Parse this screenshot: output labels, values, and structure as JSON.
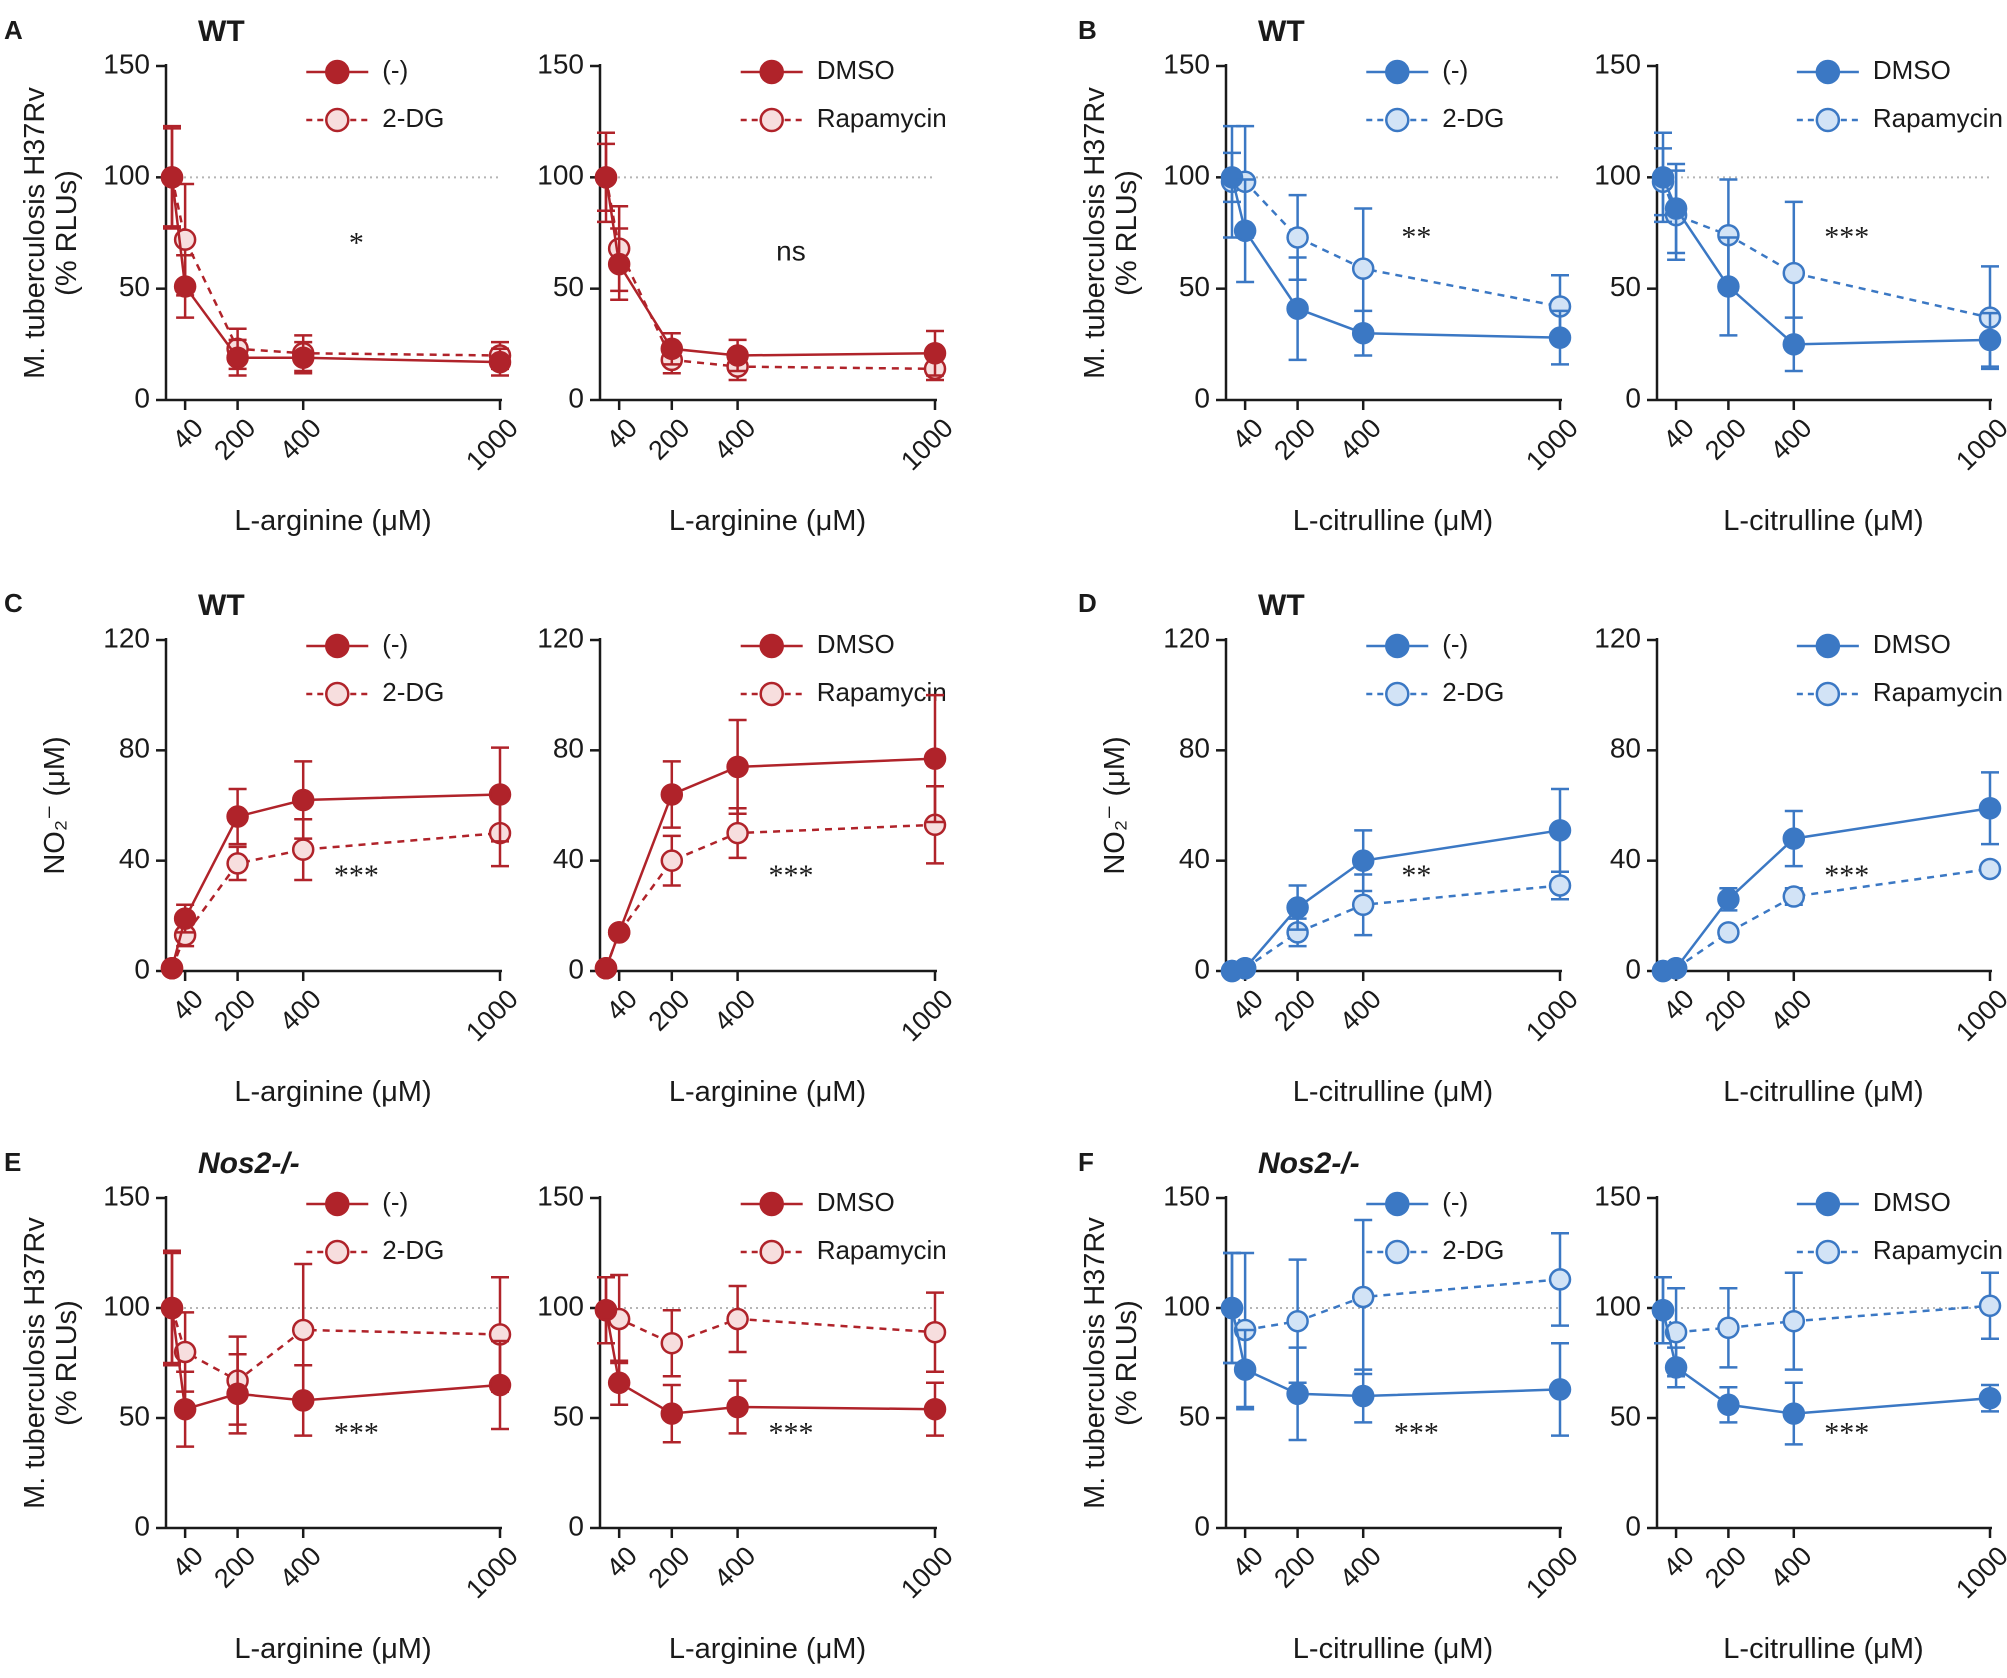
{
  "figure": {
    "panel_letters": [
      "A",
      "B",
      "C",
      "D",
      "E",
      "F"
    ]
  },
  "colors": {
    "red": "#b0232a",
    "red_light": "#f7dede",
    "blue": "#3b78c4",
    "blue_light": "#d2e3f6",
    "axis": "#1a1a1a",
    "reference": "#b5b5b5"
  },
  "chart_data": [
    {
      "id": "A1",
      "panel": "A",
      "header": "WT",
      "header_italic": false,
      "color": "red",
      "type": "line",
      "ylabel": [
        "M. tuberculosis H37Rv",
        "(% RLUs)"
      ],
      "xlabel": "L-arginine (μM)",
      "x": [
        0,
        40,
        200,
        400,
        1000
      ],
      "xticks": [
        40,
        200,
        400,
        1000
      ],
      "yticks": [
        0,
        50,
        100,
        150
      ],
      "ylim": [
        0,
        150
      ],
      "reference_line": 100,
      "series": [
        {
          "name": "(-)",
          "style": "solid-filled",
          "values": [
            100,
            51,
            19,
            19,
            17
          ],
          "err": [
            23,
            14,
            8,
            7,
            6
          ]
        },
        {
          "name": "2-DG",
          "style": "dashed-open",
          "values": [
            100,
            72,
            23,
            21,
            20
          ],
          "err": [
            22,
            25,
            9,
            8,
            6
          ]
        }
      ],
      "annotation": "*"
    },
    {
      "id": "A2",
      "panel": "A",
      "header": "",
      "header_italic": false,
      "color": "red",
      "type": "line",
      "ylabel": [],
      "xlabel": "L-arginine (μM)",
      "x": [
        0,
        40,
        200,
        400,
        1000
      ],
      "xticks": [
        40,
        200,
        400,
        1000
      ],
      "yticks": [
        0,
        50,
        100,
        150
      ],
      "ylim": [
        0,
        150
      ],
      "reference_line": 100,
      "series": [
        {
          "name": "DMSO",
          "style": "solid-filled",
          "values": [
            100,
            61,
            23,
            20,
            21
          ],
          "err": [
            20,
            16,
            7,
            7,
            10
          ]
        },
        {
          "name": "Rapamycin",
          "style": "dashed-open",
          "values": [
            100,
            68,
            18,
            15,
            14
          ],
          "err": [
            15,
            19,
            6,
            6,
            5
          ]
        }
      ],
      "annotation": "ns"
    },
    {
      "id": "B1",
      "panel": "B",
      "header": "WT",
      "header_italic": false,
      "color": "blue",
      "type": "line",
      "ylabel": [
        "M. tuberculosis H37Rv",
        "(% RLUs)"
      ],
      "xlabel": "L-citrulline (μM)",
      "x": [
        0,
        40,
        200,
        400,
        1000
      ],
      "xticks": [
        40,
        200,
        400,
        1000
      ],
      "yticks": [
        0,
        50,
        100,
        150
      ],
      "ylim": [
        0,
        150
      ],
      "reference_line": 100,
      "series": [
        {
          "name": "(-)",
          "style": "solid-filled",
          "values": [
            100,
            76,
            41,
            30,
            28
          ],
          "err": [
            11,
            23,
            23,
            10,
            12
          ]
        },
        {
          "name": "2-DG",
          "style": "dashed-open",
          "values": [
            98,
            98,
            73,
            59,
            42
          ],
          "err": [
            25,
            25,
            19,
            27,
            14
          ]
        }
      ],
      "annotation": "**"
    },
    {
      "id": "B2",
      "panel": "B",
      "header": "",
      "header_italic": false,
      "color": "blue",
      "type": "line",
      "ylabel": [],
      "xlabel": "L-citrulline (μM)",
      "x": [
        0,
        40,
        200,
        400,
        1000
      ],
      "xticks": [
        40,
        200,
        400,
        1000
      ],
      "yticks": [
        0,
        50,
        100,
        150
      ],
      "ylim": [
        0,
        150
      ],
      "reference_line": 100,
      "series": [
        {
          "name": "DMSO",
          "style": "solid-filled",
          "values": [
            100,
            86,
            51,
            25,
            27
          ],
          "err": [
            20,
            20,
            22,
            12,
            12
          ]
        },
        {
          "name": "Rapamycin",
          "style": "dashed-open",
          "values": [
            98,
            83,
            74,
            57,
            37
          ],
          "err": [
            15,
            20,
            25,
            32,
            23
          ]
        }
      ],
      "annotation": "***"
    },
    {
      "id": "C1",
      "panel": "C",
      "header": "WT",
      "header_italic": false,
      "color": "red",
      "type": "line",
      "ylabel": [
        "NO₂⁻ (μM)"
      ],
      "xlabel": "L-arginine (μM)",
      "x": [
        0,
        40,
        200,
        400,
        1000
      ],
      "xticks": [
        40,
        200,
        400,
        1000
      ],
      "yticks": [
        0,
        40,
        80,
        120
      ],
      "ylim": [
        0,
        120
      ],
      "reference_line": null,
      "series": [
        {
          "name": "(-)",
          "style": "solid-filled",
          "values": [
            1,
            19,
            56,
            62,
            64
          ],
          "err": [
            1,
            5,
            10,
            14,
            17
          ]
        },
        {
          "name": "2-DG",
          "style": "dashed-open",
          "values": [
            1,
            13,
            39,
            44,
            50
          ],
          "err": [
            1,
            4,
            6,
            11,
            12
          ]
        }
      ],
      "annotation": "***"
    },
    {
      "id": "C2",
      "panel": "C",
      "header": "",
      "header_italic": false,
      "color": "red",
      "type": "line",
      "ylabel": [],
      "xlabel": "L-arginine (μM)",
      "x": [
        0,
        40,
        200,
        400,
        1000
      ],
      "xticks": [
        40,
        200,
        400,
        1000
      ],
      "yticks": [
        0,
        40,
        80,
        120
      ],
      "ylim": [
        0,
        120
      ],
      "reference_line": null,
      "series": [
        {
          "name": "DMSO",
          "style": "solid-filled",
          "values": [
            1,
            14,
            64,
            74,
            77
          ],
          "err": [
            1,
            2,
            12,
            17,
            23
          ]
        },
        {
          "name": "Rapamycin",
          "style": "dashed-open",
          "values": [
            1,
            14,
            40,
            50,
            53
          ],
          "err": [
            1,
            2,
            9,
            9,
            14
          ]
        }
      ],
      "annotation": "***"
    },
    {
      "id": "D1",
      "panel": "D",
      "header": "WT",
      "header_italic": false,
      "color": "blue",
      "type": "line",
      "ylabel": [
        "NO₂⁻ (μM)"
      ],
      "xlabel": "L-citrulline (μM)",
      "x": [
        0,
        40,
        200,
        400,
        1000
      ],
      "xticks": [
        40,
        200,
        400,
        1000
      ],
      "yticks": [
        0,
        40,
        80,
        120
      ],
      "ylim": [
        0,
        120
      ],
      "reference_line": null,
      "series": [
        {
          "name": "(-)",
          "style": "solid-filled",
          "values": [
            0,
            1,
            23,
            40,
            51
          ],
          "err": [
            1,
            1,
            8,
            11,
            15
          ]
        },
        {
          "name": "2-DG",
          "style": "dashed-open",
          "values": [
            0,
            1,
            14,
            24,
            31
          ],
          "err": [
            1,
            1,
            5,
            11,
            5
          ]
        }
      ],
      "annotation": "**"
    },
    {
      "id": "D2",
      "panel": "D",
      "header": "",
      "header_italic": false,
      "color": "blue",
      "type": "line",
      "ylabel": [],
      "xlabel": "L-citrulline (μM)",
      "x": [
        0,
        40,
        200,
        400,
        1000
      ],
      "xticks": [
        40,
        200,
        400,
        1000
      ],
      "yticks": [
        0,
        40,
        80,
        120
      ],
      "ylim": [
        0,
        120
      ],
      "reference_line": null,
      "series": [
        {
          "name": "DMSO",
          "style": "solid-filled",
          "values": [
            0,
            1,
            26,
            48,
            59
          ],
          "err": [
            1,
            1,
            4,
            10,
            13
          ]
        },
        {
          "name": "Rapamycin",
          "style": "dashed-open",
          "values": [
            0,
            1,
            14,
            27,
            37
          ],
          "err": [
            1,
            1,
            2,
            3,
            2
          ]
        }
      ],
      "annotation": "***"
    },
    {
      "id": "E1",
      "panel": "E",
      "header": "Nos2-/-",
      "header_italic": true,
      "color": "red",
      "type": "line",
      "ylabel": [
        "M. tuberculosis H37Rv",
        "(% RLUs)"
      ],
      "xlabel": "L-arginine (μM)",
      "x": [
        0,
        40,
        200,
        400,
        1000
      ],
      "xticks": [
        40,
        200,
        400,
        1000
      ],
      "yticks": [
        0,
        50,
        100,
        150
      ],
      "ylim": [
        0,
        150
      ],
      "reference_line": 100,
      "series": [
        {
          "name": "(-)",
          "style": "solid-filled",
          "values": [
            100,
            54,
            61,
            58,
            65
          ],
          "err": [
            26,
            17,
            18,
            16,
            20
          ]
        },
        {
          "name": "2-DG",
          "style": "dashed-open",
          "values": [
            100,
            80,
            67,
            90,
            88
          ],
          "err": [
            25,
            18,
            20,
            30,
            26
          ]
        }
      ],
      "annotation": "***"
    },
    {
      "id": "E2",
      "panel": "E",
      "header": "",
      "header_italic": false,
      "color": "red",
      "type": "line",
      "ylabel": [],
      "xlabel": "L-arginine (μM)",
      "x": [
        0,
        40,
        200,
        400,
        1000
      ],
      "xticks": [
        40,
        200,
        400,
        1000
      ],
      "yticks": [
        0,
        50,
        100,
        150
      ],
      "ylim": [
        0,
        150
      ],
      "reference_line": 100,
      "series": [
        {
          "name": "DMSO",
          "style": "solid-filled",
          "values": [
            99,
            66,
            52,
            55,
            54
          ],
          "err": [
            15,
            10,
            13,
            12,
            12
          ]
        },
        {
          "name": "Rapamycin",
          "style": "dashed-open",
          "values": [
            99,
            95,
            84,
            95,
            89
          ],
          "err": [
            15,
            20,
            15,
            15,
            18
          ]
        }
      ],
      "annotation": "***"
    },
    {
      "id": "F1",
      "panel": "F",
      "header": "Nos2-/-",
      "header_italic": true,
      "color": "blue",
      "type": "line",
      "ylabel": [
        "M. tuberculosis H37Rv",
        "(% RLUs)"
      ],
      "xlabel": "L-citrulline (μM)",
      "x": [
        0,
        40,
        200,
        400,
        1000
      ],
      "xticks": [
        40,
        200,
        400,
        1000
      ],
      "yticks": [
        0,
        50,
        100,
        150
      ],
      "ylim": [
        0,
        150
      ],
      "reference_line": 100,
      "series": [
        {
          "name": "(-)",
          "style": "solid-filled",
          "values": [
            100,
            72,
            61,
            60,
            63
          ],
          "err": [
            25,
            18,
            21,
            12,
            21
          ]
        },
        {
          "name": "2-DG",
          "style": "dashed-open",
          "values": [
            100,
            90,
            94,
            105,
            113
          ],
          "err": [
            25,
            35,
            28,
            35,
            21
          ]
        }
      ],
      "annotation": "***"
    },
    {
      "id": "F2",
      "panel": "F",
      "header": "",
      "header_italic": false,
      "color": "blue",
      "type": "line",
      "ylabel": [],
      "xlabel": "L-citrulline (μM)",
      "x": [
        0,
        40,
        200,
        400,
        1000
      ],
      "xticks": [
        40,
        200,
        400,
        1000
      ],
      "yticks": [
        0,
        50,
        100,
        150
      ],
      "ylim": [
        0,
        150
      ],
      "reference_line": 100,
      "series": [
        {
          "name": "DMSO",
          "style": "solid-filled",
          "values": [
            99,
            73,
            56,
            52,
            59
          ],
          "err": [
            15,
            9,
            8,
            14,
            6
          ]
        },
        {
          "name": "Rapamycin",
          "style": "dashed-open",
          "values": [
            99,
            89,
            91,
            94,
            101
          ],
          "err": [
            15,
            20,
            18,
            22,
            15
          ]
        }
      ],
      "annotation": "***"
    }
  ]
}
